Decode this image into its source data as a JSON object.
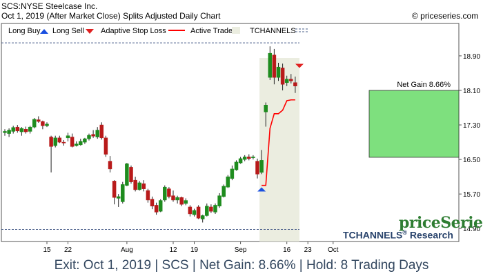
{
  "header": {
    "line1": "SCS:NYSE Steelcase Inc.",
    "line2": "Oct 1, 2019 (After Market Close)  Splits Adjusted Daily Chart",
    "copyright": "© priceseries.com"
  },
  "legend": {
    "long_buy": "Long Buy",
    "long_sell": "Long Sell",
    "adaptive_stop": "Adaptive Stop Loss",
    "active_trade": "Active Trade",
    "tchannels": "TCHANNELS"
  },
  "brand": {
    "name": "priceSeries",
    "sub": "TCHANNELS",
    "reg": "®",
    "sub2": " Research"
  },
  "footer": "Exit: Oct 1, 2019 | SCS | Net Gain: 8.66% | Hold: 8 Trading Days",
  "colors": {
    "up": "#1e8c1e",
    "down": "#b81a1a",
    "stop": "#ff0000",
    "buy_arrow": "#1a50e0",
    "sell_arrow": "#e02020",
    "gain_box": "#7ee07e",
    "active_trade": "#ebede0",
    "channel": "#4a5f8a"
  },
  "chart_data": {
    "type": "candlestick",
    "x_tick_labels": [
      "15",
      "22",
      "Aug",
      "12",
      "19",
      "Sep",
      "16",
      "23",
      "Oct"
    ],
    "x_tick_index": [
      10,
      15,
      29,
      40,
      45,
      56,
      67,
      72,
      78
    ],
    "y_ticks": [
      14.9,
      15.7,
      16.5,
      17.3,
      18.1,
      18.9
    ],
    "ylim": [
      14.6,
      19.65
    ],
    "y_axis_side": "right",
    "candles": [
      {
        "o": 17.12,
        "h": 17.2,
        "l": 17.05,
        "c": 17.15
      },
      {
        "o": 17.1,
        "h": 17.22,
        "l": 17.02,
        "c": 17.18
      },
      {
        "o": 17.15,
        "h": 17.28,
        "l": 17.1,
        "c": 17.24
      },
      {
        "o": 17.25,
        "h": 17.3,
        "l": 17.12,
        "c": 17.16
      },
      {
        "o": 17.14,
        "h": 17.25,
        "l": 17.05,
        "c": 17.22
      },
      {
        "o": 17.2,
        "h": 17.26,
        "l": 17.1,
        "c": 17.14
      },
      {
        "o": 17.15,
        "h": 17.28,
        "l": 17.1,
        "c": 17.25
      },
      {
        "o": 17.25,
        "h": 17.46,
        "l": 17.22,
        "c": 17.43
      },
      {
        "o": 17.42,
        "h": 17.5,
        "l": 17.35,
        "c": 17.38
      },
      {
        "o": 17.38,
        "h": 17.4,
        "l": 17.2,
        "c": 17.28
      },
      {
        "o": 17.28,
        "h": 17.36,
        "l": 17.25,
        "c": 17.32
      },
      {
        "o": 17.02,
        "h": 17.05,
        "l": 16.2,
        "c": 16.8
      },
      {
        "o": 16.82,
        "h": 17.05,
        "l": 16.78,
        "c": 17.0
      },
      {
        "o": 17.0,
        "h": 17.05,
        "l": 16.88,
        "c": 16.9
      },
      {
        "o": 16.9,
        "h": 16.95,
        "l": 16.82,
        "c": 16.88
      },
      {
        "o": 17.0,
        "h": 17.12,
        "l": 16.92,
        "c": 17.05
      },
      {
        "o": 17.02,
        "h": 17.1,
        "l": 16.78,
        "c": 16.8
      },
      {
        "o": 16.82,
        "h": 16.92,
        "l": 16.8,
        "c": 16.86
      },
      {
        "o": 16.84,
        "h": 16.98,
        "l": 16.82,
        "c": 16.92
      },
      {
        "o": 16.9,
        "h": 17.0,
        "l": 16.86,
        "c": 16.98
      },
      {
        "o": 16.98,
        "h": 17.1,
        "l": 16.94,
        "c": 17.06
      },
      {
        "o": 17.08,
        "h": 17.18,
        "l": 17.0,
        "c": 17.04
      },
      {
        "o": 17.02,
        "h": 17.25,
        "l": 16.98,
        "c": 17.18
      },
      {
        "o": 17.3,
        "h": 17.36,
        "l": 16.96,
        "c": 17.0
      },
      {
        "o": 17.0,
        "h": 17.05,
        "l": 16.56,
        "c": 16.62
      },
      {
        "o": 16.46,
        "h": 16.58,
        "l": 16.2,
        "c": 16.28
      },
      {
        "o": 16.0,
        "h": 16.02,
        "l": 15.46,
        "c": 15.62
      },
      {
        "o": 15.6,
        "h": 15.7,
        "l": 15.4,
        "c": 15.64
      },
      {
        "o": 15.52,
        "h": 15.98,
        "l": 15.48,
        "c": 15.92
      },
      {
        "o": 15.9,
        "h": 16.42,
        "l": 15.88,
        "c": 16.4
      },
      {
        "o": 16.32,
        "h": 16.36,
        "l": 15.94,
        "c": 15.98
      },
      {
        "o": 16.02,
        "h": 16.1,
        "l": 15.76,
        "c": 15.8
      },
      {
        "o": 15.8,
        "h": 16.0,
        "l": 15.78,
        "c": 15.96
      },
      {
        "o": 15.94,
        "h": 16.02,
        "l": 15.76,
        "c": 15.82
      },
      {
        "o": 15.78,
        "h": 15.82,
        "l": 15.5,
        "c": 15.56
      },
      {
        "o": 15.58,
        "h": 15.64,
        "l": 15.35,
        "c": 15.42
      },
      {
        "o": 15.44,
        "h": 15.5,
        "l": 15.22,
        "c": 15.28
      },
      {
        "o": 15.3,
        "h": 15.58,
        "l": 15.28,
        "c": 15.55
      },
      {
        "o": 15.56,
        "h": 15.9,
        "l": 15.52,
        "c": 15.86
      },
      {
        "o": 15.82,
        "h": 15.86,
        "l": 15.6,
        "c": 15.64
      },
      {
        "o": 15.66,
        "h": 15.78,
        "l": 15.52,
        "c": 15.56
      },
      {
        "o": 15.56,
        "h": 15.66,
        "l": 15.48,
        "c": 15.62
      },
      {
        "o": 15.62,
        "h": 15.64,
        "l": 15.42,
        "c": 15.46
      },
      {
        "o": 15.48,
        "h": 15.6,
        "l": 15.44,
        "c": 15.55
      },
      {
        "o": 15.4,
        "h": 15.44,
        "l": 15.18,
        "c": 15.24
      },
      {
        "o": 15.22,
        "h": 15.36,
        "l": 15.18,
        "c": 15.32
      },
      {
        "o": 15.4,
        "h": 15.44,
        "l": 15.12,
        "c": 15.14
      },
      {
        "o": 15.12,
        "h": 15.22,
        "l": 15.04,
        "c": 15.2
      },
      {
        "o": 15.2,
        "h": 15.48,
        "l": 15.18,
        "c": 15.42
      },
      {
        "o": 15.4,
        "h": 15.46,
        "l": 15.26,
        "c": 15.3
      },
      {
        "o": 15.28,
        "h": 15.48,
        "l": 15.24,
        "c": 15.44
      },
      {
        "o": 15.42,
        "h": 15.72,
        "l": 15.38,
        "c": 15.66
      },
      {
        "o": 15.64,
        "h": 15.92,
        "l": 15.62,
        "c": 15.88
      },
      {
        "o": 15.86,
        "h": 16.14,
        "l": 15.84,
        "c": 16.1
      },
      {
        "o": 16.06,
        "h": 16.36,
        "l": 16.02,
        "c": 16.28
      },
      {
        "o": 16.26,
        "h": 16.48,
        "l": 16.24,
        "c": 16.44
      },
      {
        "o": 16.42,
        "h": 16.56,
        "l": 16.4,
        "c": 16.52
      },
      {
        "o": 16.5,
        "h": 16.6,
        "l": 16.46,
        "c": 16.56
      },
      {
        "o": 16.56,
        "h": 16.62,
        "l": 16.48,
        "c": 16.52
      },
      {
        "o": 16.54,
        "h": 16.6,
        "l": 16.5,
        "c": 16.56
      },
      {
        "o": 16.46,
        "h": 16.52,
        "l": 16.06,
        "c": 16.16
      },
      {
        "o": 16.2,
        "h": 16.72,
        "l": 16.16,
        "c": 16.48
      },
      {
        "o": 17.6,
        "h": 17.82,
        "l": 17.26,
        "c": 17.76
      },
      {
        "o": 18.4,
        "h": 19.12,
        "l": 18.34,
        "c": 18.96
      },
      {
        "o": 18.92,
        "h": 19.06,
        "l": 18.24,
        "c": 18.4
      },
      {
        "o": 18.4,
        "h": 18.74,
        "l": 18.32,
        "c": 18.64
      },
      {
        "o": 18.62,
        "h": 18.72,
        "l": 18.1,
        "c": 18.24
      },
      {
        "o": 18.28,
        "h": 18.44,
        "l": 18.2,
        "c": 18.36
      },
      {
        "o": 18.36,
        "h": 18.48,
        "l": 18.26,
        "c": 18.32
      },
      {
        "o": 18.28,
        "h": 18.42,
        "l": 18.04,
        "c": 18.2
      }
    ],
    "candle_index_start": 0,
    "candle_index_gap_note": "",
    "stop_loss": [
      [
        61,
        15.9
      ],
      [
        62,
        15.9
      ],
      [
        63,
        17.22
      ],
      [
        64,
        17.56
      ],
      [
        65,
        17.56
      ],
      [
        66,
        17.64
      ],
      [
        67,
        17.86
      ],
      [
        68,
        17.88
      ],
      [
        69,
        17.88
      ]
    ],
    "entry": {
      "index": 61,
      "price": 15.95
    },
    "exit": {
      "index": 70,
      "price": 18.62
    },
    "active_trade_range": [
      61,
      70
    ],
    "tchannels": {
      "upper": 19.2,
      "lower": 14.88
    },
    "net_gain": {
      "label": "Net Gain 8.66%",
      "from": 16.55,
      "to": 18.1
    }
  }
}
